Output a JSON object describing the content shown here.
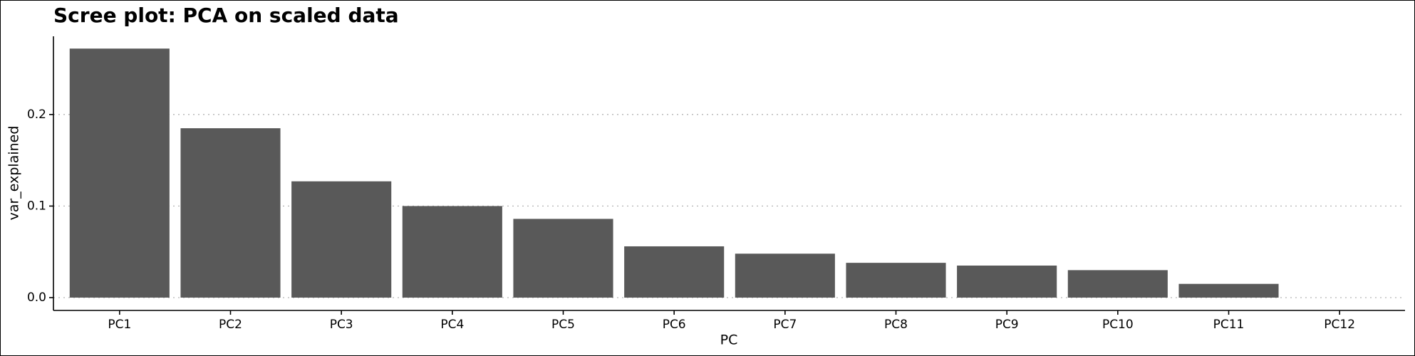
{
  "chart_data": {
    "type": "bar",
    "title": "Scree plot: PCA on scaled data",
    "x_label": "PC",
    "y_label": "var_explained",
    "categories": [
      "PC1",
      "PC2",
      "PC3",
      "PC4",
      "PC5",
      "PC6",
      "PC7",
      "PC8",
      "PC9",
      "PC10",
      "PC11",
      "PC12"
    ],
    "values": [
      0.272,
      0.185,
      0.127,
      0.1,
      0.086,
      0.056,
      0.048,
      0.038,
      0.035,
      0.03,
      0.015,
      0
    ],
    "color": "#595959",
    "ylim": [
      -0.014,
      0.2854
    ],
    "yticks": [
      {
        "value": 0,
        "label": "0.0"
      },
      0.1,
      0.2
    ],
    "grid": true
  }
}
